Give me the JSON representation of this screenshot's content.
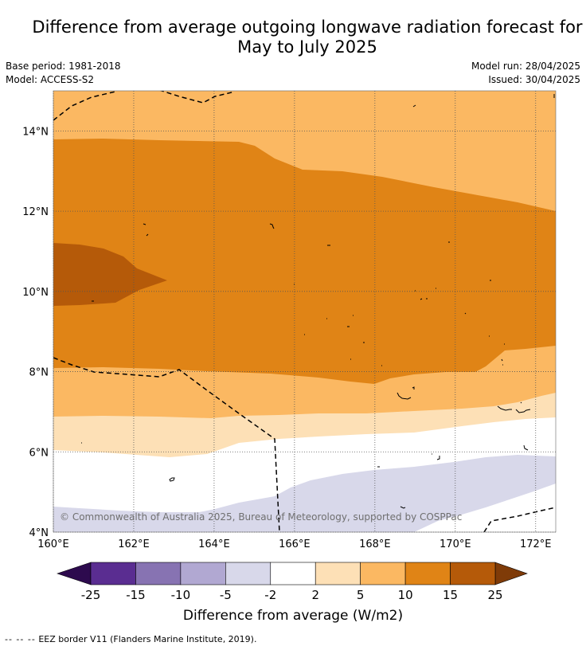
{
  "title_line1": "Difference from average outgoing longwave radiation forecast for",
  "title_line2": "May to July 2025",
  "meta": {
    "base_period": "Base period: 1981-2018",
    "model": "Model: ACCESS-S2",
    "model_run": "Model run: 28/04/2025",
    "issued": "Issued: 30/04/2025"
  },
  "map": {
    "lon_range": [
      160,
      172.5
    ],
    "lat_range": [
      4,
      15
    ],
    "lon_ticks": [
      "160°E",
      "162°E",
      "164°E",
      "166°E",
      "168°E",
      "170°E",
      "172°E"
    ],
    "lat_ticks": [
      "4°N",
      "6°N",
      "8°N",
      "10°N",
      "12°N",
      "14°N"
    ],
    "grid": "dotted",
    "watermark": "© Commonwealth of Australia 2025, Bureau of Meteorology, supported by COSPPac"
  },
  "colorbar": {
    "ticks": [
      "-25",
      "-15",
      "-10",
      "-5",
      "-2",
      "2",
      "5",
      "10",
      "15",
      "25"
    ],
    "label": "Difference from average (W/m2)",
    "colors": {
      "below_min": "#2d0a4e",
      "lt_-15": "#5a2d91",
      "-15_-10": "#8773b2",
      "-10_-5": "#b1a8d2",
      "-5_-2": "#d8d8ea",
      "-2_2": "#ffffff",
      "2_5": "#fde0b6",
      "5_10": "#fbb862",
      "10_15": "#e08416",
      "15_25": "#b55a09",
      "above_max": "#7f3b08"
    }
  },
  "footer": {
    "legend_symbol": "-- -- --",
    "legend_text": "EEZ border V11 (Flanders Marine Institute, 2019)."
  }
}
